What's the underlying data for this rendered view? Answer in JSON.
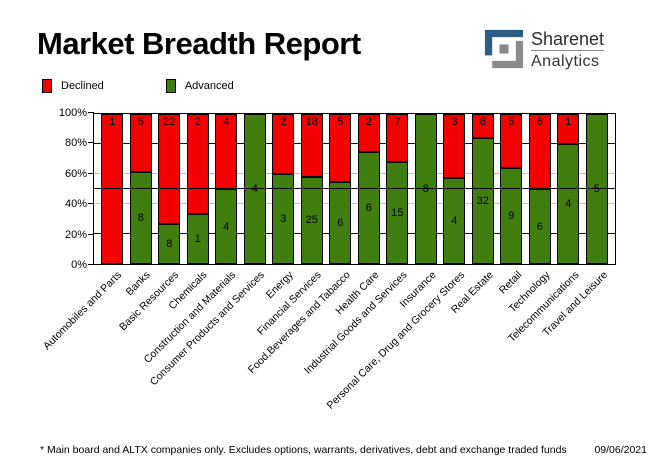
{
  "title": "Market Breadth Report",
  "logo": {
    "line1": "Sharenet",
    "line2": "Analytics",
    "glyph_blue": "#2c5d85",
    "glyph_gray": "#8a8a8a"
  },
  "legend": [
    {
      "label": "Declined",
      "color": "#f40000"
    },
    {
      "label": "Advanced",
      "color": "#3f7e0f"
    }
  ],
  "chart_data": {
    "type": "bar",
    "stacked": true,
    "normalized": "percent",
    "categories": [
      "Automobiles and Parts",
      "Banks",
      "Basic Resources",
      "Chemicals",
      "Construction and Materials",
      "Consumer Products and Services",
      "Energy",
      "Financial Services",
      "Food,Beverages and Tabacco",
      "Health Care",
      "Industrial Goods and Services",
      "Insurance",
      "Personal Care, Drug and Grocery Stores",
      "Real Estate",
      "Retail",
      "Technology",
      "Telecommunications",
      "Travel and Leisure"
    ],
    "series": [
      {
        "name": "Declined",
        "color": "#f40000",
        "values": [
          1,
          5,
          22,
          2,
          4,
          0,
          2,
          18,
          5,
          2,
          7,
          0,
          3,
          6,
          5,
          6,
          1,
          0
        ]
      },
      {
        "name": "Advanced",
        "color": "#3f7e0f",
        "values": [
          0,
          8,
          8,
          1,
          4,
          4,
          3,
          25,
          6,
          6,
          15,
          8,
          4,
          32,
          9,
          6,
          4,
          5
        ]
      }
    ],
    "y_axis": {
      "ticks": [
        "100%",
        "80%",
        "60%",
        "40%",
        "20%",
        "0%"
      ],
      "range": [
        0,
        100
      ]
    },
    "gridlines": [
      {
        "pct": 80,
        "color": "#000080"
      },
      {
        "pct": 60,
        "color": "#c0c0c0"
      },
      {
        "pct": 40,
        "color": "#c0c0c0"
      },
      {
        "pct": 20,
        "color": "#000080"
      }
    ],
    "reference_line_pct": 50,
    "legend_position": "top-left",
    "grid": true
  },
  "footer": {
    "note": "* Main board and ALTX companies only. Excludes options, warrants, derivatives, debt and exchange traded funds",
    "date": "09/06/2021"
  }
}
